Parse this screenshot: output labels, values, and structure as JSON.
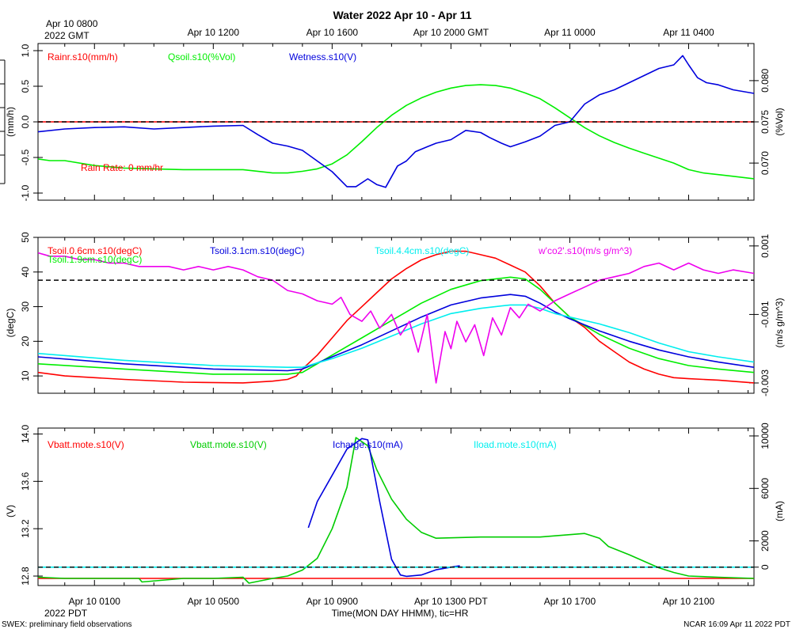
{
  "title": "Water 2022 Apr 10 - Apr 11",
  "top_axis": {
    "first_label_line1": "Apr 10 0800",
    "first_label_line2": "2022 GMT",
    "labels": [
      "Apr 10 1200",
      "Apr 10 1600",
      "Apr 10 2000 GMT",
      "Apr 11 0000",
      "Apr 11 0400"
    ]
  },
  "bottom_axis": {
    "labels": [
      "Apr 10 0100",
      "Apr 10 0500",
      "Apr 10 0900",
      "Apr 10 1300 PDT",
      "Apr 10 1700",
      "Apr 10 2100"
    ],
    "year_label": "2022 PDT",
    "xlabel": "Time(MON DAY HHMM), tic=HR"
  },
  "footer": {
    "left": "SWEX: preliminary field observations",
    "right": "NCAR 16:09 Apr 11 2022 PDT"
  },
  "chart_data": [
    {
      "type": "line",
      "panel": "water",
      "x_unit": "hours since Apr 10 0000 PDT",
      "xlim": [
        -0.9,
        23.2
      ],
      "left_axis": {
        "label": "(mm/h)",
        "ylim": [
          -1.1,
          1.1
        ],
        "ticks": [
          "-1.0",
          "-0.5",
          "0.0",
          "0.5",
          "1.0"
        ]
      },
      "right_axis": {
        "label": "(%Vol)",
        "ylim": [
          0.0655,
          0.0845
        ],
        "ticks": [
          "0.070",
          "0.075",
          "0.080"
        ]
      },
      "annotation": "Rain Rate: 0 mm/hr",
      "reference_line": {
        "axis": "left",
        "value": 0.0
      },
      "series": [
        {
          "name": "Rainr.s10(mm/h)",
          "axis": "left",
          "color": "#ff0000",
          "x": [
            -0.9,
            23.2
          ],
          "y": [
            0.0,
            0.0
          ]
        },
        {
          "name": "Qsoil.s10(%Vol)",
          "axis": "right",
          "color": "#00ee00",
          "x": [
            -0.9,
            -0.5,
            0.0,
            1.0,
            2.0,
            3.0,
            4.0,
            5.0,
            6.0,
            7.0,
            7.5,
            8.0,
            8.5,
            9.0,
            9.5,
            10.0,
            10.5,
            11.0,
            11.5,
            12.0,
            12.5,
            13.0,
            13.5,
            14.0,
            14.5,
            15.0,
            15.5,
            16.0,
            16.5,
            17.0,
            17.5,
            18.0,
            18.5,
            19.0,
            19.5,
            20.0,
            20.5,
            21.0,
            21.5,
            22.0,
            22.5,
            23.2
          ],
          "y": [
            0.0705,
            0.0703,
            0.0703,
            0.0697,
            0.0694,
            0.0693,
            0.0692,
            0.0692,
            0.0692,
            0.0688,
            0.0688,
            0.069,
            0.0693,
            0.0699,
            0.071,
            0.0726,
            0.0743,
            0.0758,
            0.077,
            0.0779,
            0.0786,
            0.0791,
            0.0794,
            0.0795,
            0.0794,
            0.0791,
            0.0785,
            0.0778,
            0.0767,
            0.0755,
            0.0743,
            0.0733,
            0.0725,
            0.0718,
            0.0712,
            0.0706,
            0.07,
            0.0692,
            0.0688,
            0.0686,
            0.0684,
            0.0681
          ]
        },
        {
          "name": "Wetness.s10(V)",
          "axis": "left",
          "color": "#0000dd",
          "x": [
            -0.9,
            0.0,
            1.0,
            2.0,
            3.0,
            4.0,
            5.0,
            6.0,
            6.5,
            7.0,
            7.5,
            8.0,
            8.5,
            9.0,
            9.5,
            9.8,
            10.2,
            10.5,
            10.8,
            11.2,
            11.5,
            11.8,
            12.2,
            12.5,
            13.0,
            13.5,
            14.0,
            14.3,
            14.7,
            15.0,
            15.5,
            16.0,
            16.5,
            17.0,
            17.5,
            18.0,
            18.5,
            19.0,
            19.5,
            20.0,
            20.5,
            20.8,
            21.0,
            21.3,
            21.6,
            22.0,
            22.5,
            23.2
          ],
          "y": [
            -0.14,
            -0.1,
            -0.08,
            -0.07,
            -0.1,
            -0.08,
            -0.06,
            -0.05,
            -0.18,
            -0.3,
            -0.34,
            -0.4,
            -0.55,
            -0.7,
            -0.91,
            -0.91,
            -0.8,
            -0.88,
            -0.92,
            -0.62,
            -0.55,
            -0.42,
            -0.35,
            -0.3,
            -0.25,
            -0.12,
            -0.15,
            -0.22,
            -0.3,
            -0.35,
            -0.28,
            -0.2,
            -0.05,
            0.0,
            0.25,
            0.38,
            0.45,
            0.55,
            0.65,
            0.75,
            0.8,
            0.93,
            0.8,
            0.62,
            0.55,
            0.52,
            0.45,
            0.4
          ]
        }
      ]
    },
    {
      "type": "line",
      "panel": "soil temperature",
      "x_unit": "hours since Apr 10 0000 PDT",
      "xlim": [
        -0.9,
        23.2
      ],
      "left_axis": {
        "label": "(degC)",
        "ylim": [
          5,
          50
        ],
        "ticks": [
          "10",
          "20",
          "30",
          "40",
          "50"
        ]
      },
      "right_axis": {
        "label": "(m/s g/m^3)",
        "ylim": [
          -0.0033,
          0.00125
        ],
        "ticks": [
          "0.001",
          "-0.001",
          "-0.003"
        ]
      },
      "reference_line": {
        "axis": "right",
        "value": 0.0
      },
      "series": [
        {
          "name": "Tsoil.0.6cm.s10(degC)",
          "axis": "left",
          "color": "#ff0000",
          "x": [
            -0.9,
            0.0,
            2.0,
            4.0,
            6.0,
            7.0,
            7.5,
            7.8,
            8.0,
            8.5,
            9.0,
            9.5,
            10.0,
            10.5,
            11.0,
            11.5,
            12.0,
            12.5,
            13.0,
            13.5,
            14.0,
            14.5,
            15.0,
            15.5,
            16.0,
            16.5,
            17.0,
            17.5,
            18.0,
            18.5,
            19.0,
            19.5,
            20.0,
            20.5,
            21.0,
            21.5,
            22.0,
            23.2
          ],
          "y": [
            11,
            10,
            9,
            8.2,
            8,
            8.5,
            9,
            10,
            12,
            16,
            21,
            26,
            30,
            34,
            38,
            41,
            43.5,
            45,
            46,
            46,
            45,
            44,
            42,
            40,
            36,
            31,
            27,
            24,
            20,
            17,
            14,
            12,
            10.5,
            9.5,
            9.2,
            9,
            8.8,
            8
          ]
        },
        {
          "name": "Tsoil.1.9cm.s10(degC)",
          "axis": "left",
          "color": "#00ee00",
          "x": [
            -0.9,
            2.0,
            5.0,
            7.5,
            8.0,
            9.0,
            10.0,
            11.0,
            12.0,
            13.0,
            14.0,
            15.0,
            15.5,
            16.0,
            16.5,
            17.0,
            18.0,
            19.0,
            20.0,
            21.0,
            22.0,
            23.2
          ],
          "y": [
            13.5,
            12,
            10.5,
            10.5,
            11,
            16,
            21,
            26,
            31,
            35,
            37.5,
            38.5,
            38,
            35,
            31,
            27,
            22,
            18,
            15,
            13,
            12,
            11
          ]
        },
        {
          "name": "Tsoil.3.1cm.s10(degC)",
          "axis": "left",
          "color": "#0000dd",
          "x": [
            -0.9,
            2.0,
            5.0,
            7.5,
            8.0,
            9.0,
            10.0,
            11.0,
            12.0,
            13.0,
            14.0,
            15.0,
            15.5,
            16.0,
            16.5,
            17.0,
            18.0,
            19.0,
            20.0,
            21.0,
            22.0,
            23.2
          ],
          "y": [
            15.5,
            13.5,
            12,
            11.5,
            12,
            15.5,
            19,
            23,
            27,
            30.5,
            32.5,
            33.5,
            33,
            31,
            28.5,
            26.5,
            23,
            20,
            17.5,
            15.5,
            14,
            12.5
          ]
        },
        {
          "name": "Tsoil.4.4cm.s10(degC)",
          "axis": "left",
          "color": "#00eeee",
          "x": [
            -0.9,
            2.0,
            5.0,
            7.5,
            8.0,
            9.0,
            10.0,
            11.0,
            12.0,
            13.0,
            14.0,
            15.0,
            15.5,
            16.0,
            16.5,
            17.0,
            18.0,
            19.0,
            20.0,
            21.0,
            22.0,
            23.2
          ],
          "y": [
            16.5,
            14.5,
            13,
            12.5,
            12.5,
            15,
            18,
            21.5,
            25,
            28,
            29.5,
            30.5,
            30.5,
            29.5,
            28,
            27,
            25,
            22.5,
            19.5,
            17,
            15.5,
            14
          ]
        },
        {
          "name": "w'co2'.s10(m/s g/m^3)",
          "axis": "right",
          "color": "#ee00ee",
          "x": [
            -0.9,
            -0.5,
            0.0,
            0.5,
            1.0,
            1.5,
            2.0,
            2.5,
            3.0,
            3.5,
            4.0,
            4.5,
            5.0,
            5.5,
            6.0,
            6.5,
            7.0,
            7.5,
            8.0,
            8.5,
            9.0,
            9.3,
            9.6,
            10.0,
            10.3,
            10.6,
            11.0,
            11.3,
            11.6,
            11.9,
            12.2,
            12.5,
            12.8,
            13.0,
            13.2,
            13.5,
            13.8,
            14.1,
            14.4,
            14.7,
            15.0,
            15.3,
            15.6,
            16.0,
            16.5,
            17.0,
            17.5,
            18.0,
            18.5,
            19.0,
            19.5,
            20.0,
            20.5,
            21.0,
            21.5,
            22.0,
            22.5,
            23.2
          ],
          "y": [
            0.0008,
            0.0007,
            0.0007,
            0.0006,
            0.0006,
            0.0005,
            0.0005,
            0.0004,
            0.0004,
            0.0004,
            0.0003,
            0.0004,
            0.0003,
            0.0004,
            0.0003,
            0.0001,
            0.0,
            -0.0003,
            -0.0004,
            -0.0006,
            -0.0007,
            -0.0005,
            -0.001,
            -0.0012,
            -0.0009,
            -0.0014,
            -0.001,
            -0.0016,
            -0.0012,
            -0.0021,
            -0.001,
            -0.003,
            -0.0015,
            -0.002,
            -0.0012,
            -0.0018,
            -0.0013,
            -0.0022,
            -0.0011,
            -0.0016,
            -0.0008,
            -0.0011,
            -0.0007,
            -0.0009,
            -0.0006,
            -0.0004,
            -0.0002,
            0.0,
            0.0001,
            0.0002,
            0.0004,
            0.0005,
            0.0003,
            0.0005,
            0.0003,
            0.0002,
            0.0003,
            0.0002
          ]
        }
      ]
    },
    {
      "type": "line",
      "panel": "power",
      "x_unit": "hours since Apr 10 0000 PDT",
      "xlim": [
        -0.9,
        23.2
      ],
      "left_axis": {
        "label": "(V)",
        "ylim": [
          12.72,
          14.05
        ],
        "ticks": [
          "12.8",
          "13.2",
          "13.6",
          "14.0"
        ]
      },
      "right_axis": {
        "label": "(mA)",
        "ylim": [
          -1400,
          10600
        ],
        "ticks": [
          "0",
          "2000",
          "6000",
          "10000"
        ]
      },
      "reference_line": {
        "axis": "right",
        "value": 0
      },
      "series": [
        {
          "name": "Vbatt.mote.s10(V)",
          "axis": "left",
          "color": "#ff0000",
          "x": [
            -0.9,
            23.2
          ],
          "y": [
            12.78,
            12.78
          ]
        },
        {
          "name": "Vbatt.mote.s10(V)",
          "axis": "left",
          "color": "#00cc00",
          "x": [
            -0.9,
            0.0,
            1.0,
            2.5,
            2.6,
            4.0,
            5.0,
            6.0,
            6.2,
            7.0,
            7.5,
            8.0,
            8.5,
            9.0,
            9.5,
            9.8,
            10.2,
            10.5,
            11.0,
            11.5,
            12.0,
            12.5,
            14.0,
            16.0,
            17.5,
            18.0,
            18.3,
            19.0,
            20.0,
            20.5,
            21.0,
            22.0,
            23.2
          ],
          "y": [
            12.79,
            12.78,
            12.78,
            12.78,
            12.75,
            12.78,
            12.78,
            12.79,
            12.74,
            12.78,
            12.8,
            12.85,
            12.95,
            13.2,
            13.55,
            13.97,
            13.9,
            13.7,
            13.45,
            13.28,
            13.17,
            13.12,
            13.13,
            13.13,
            13.16,
            13.12,
            13.05,
            12.98,
            12.87,
            12.83,
            12.8,
            12.79,
            12.78
          ]
        },
        {
          "name": "Icharge.s10(mA)",
          "axis": "right",
          "color": "#0000dd",
          "x": [
            8.2,
            8.5,
            9.0,
            9.5,
            10.0,
            10.2,
            10.6,
            11.0,
            11.3,
            11.5,
            12.0,
            12.5,
            13.0,
            13.3
          ],
          "y": [
            3000,
            5000,
            7000,
            9000,
            9800,
            9700,
            5000,
            600,
            -600,
            -700,
            -600,
            -200,
            0,
            100
          ]
        },
        {
          "name": "Iload.mote.s10(mA)",
          "axis": "right",
          "color": "#00eeee",
          "x": [
            -0.9,
            23.2
          ],
          "y": [
            0,
            0
          ]
        }
      ]
    }
  ]
}
